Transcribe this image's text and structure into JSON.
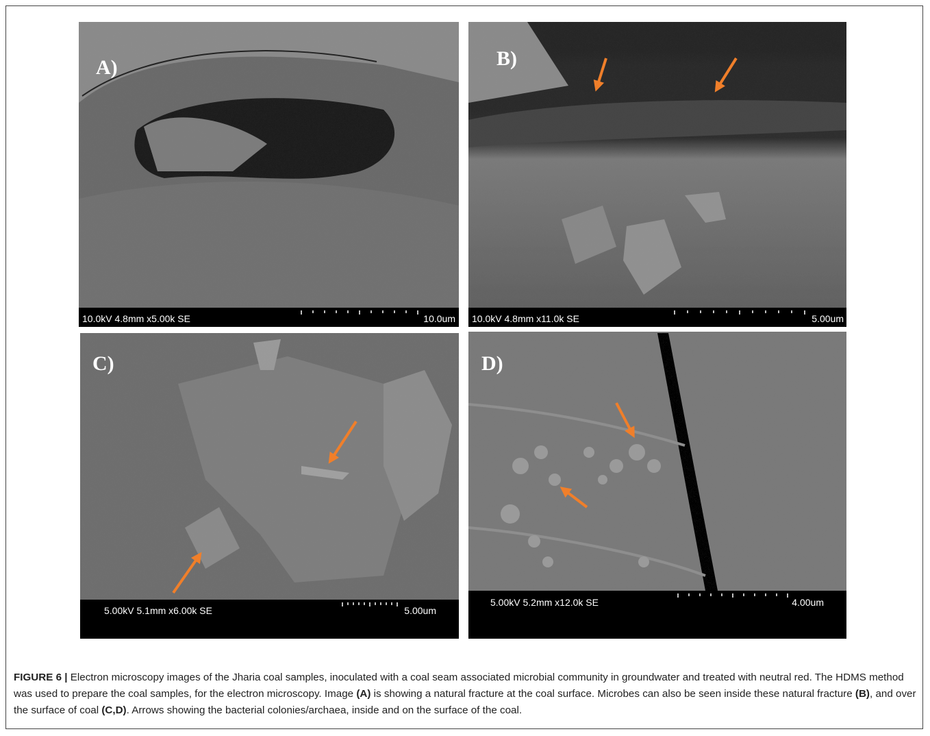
{
  "figure": {
    "panels": [
      {
        "label": "A)",
        "info": "10.0kV 4.8mm x5.00k SE",
        "scale": "10.0um"
      },
      {
        "label": "B)",
        "info": "10.0kV 4.8mm x11.0k SE",
        "scale": "5.00um"
      },
      {
        "label": "C)",
        "info": "5.00kV 5.1mm x6.00k SE",
        "scale": "5.00um"
      },
      {
        "label": "D)",
        "info": "5.00kV 5.2mm x12.0k SE",
        "scale": "4.00um"
      }
    ],
    "caption": {
      "parts": [
        "FIGURE 6 |",
        "Electron microscopy images of the Jharia coal samples, inoculated with a coal seam associated microbial community in groundwater and treated with neutral red. The HDMS method was used to prepare the coal samples, for the electron microscopy. Image",
        "(A)",
        "is showing a natural fracture at the coal surface. Microbes can also be seen inside these natural fracture",
        "(B)",
        ", and over the surface of coal",
        "(C,D)",
        ". Arrows showing the bacterial colonies/archaea, inside and on the surface of the coal."
      ]
    }
  }
}
